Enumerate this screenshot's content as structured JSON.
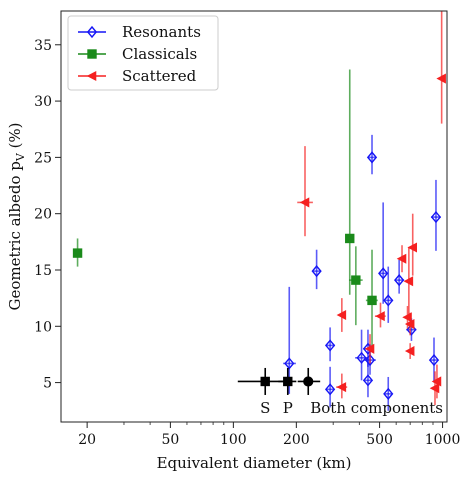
{
  "chart_data": {
    "type": "scatter",
    "xlabel": "Equivalent diameter (km)",
    "ylabel": "Geometric albedo p",
    "ylabel_sub": "V",
    "ylabel_suffix": " (%)",
    "xscale": "log",
    "xlim": [
      15,
      1050
    ],
    "ylim": [
      1.5,
      38
    ],
    "xticks": [
      20,
      50,
      100,
      200,
      500,
      1000
    ],
    "xtick_labels": [
      "20",
      "50",
      "100",
      "200",
      "500",
      "1000"
    ],
    "yticks": [
      5,
      10,
      15,
      20,
      25,
      30,
      35
    ],
    "ytick_labels": [
      "5",
      "10",
      "15",
      "20",
      "25",
      "30",
      "35"
    ],
    "grid": false,
    "legend_position": "top-left",
    "series": [
      {
        "name": "Resonants",
        "color": "#1515f5",
        "marker": "diamond",
        "points": [
          {
            "x": 250,
            "y": 14.9,
            "xerr": [
              10,
              10
            ],
            "yerr": [
              1.6,
              1.9
            ]
          },
          {
            "x": 185,
            "y": 6.7,
            "xerr": [
              12,
              14
            ],
            "yerr": [
              2.7,
              6.8
            ]
          },
          {
            "x": 290,
            "y": 8.3,
            "xerr": [
              14,
              16
            ],
            "yerr": [
              1.4,
              1.6
            ]
          },
          {
            "x": 290,
            "y": 4.4,
            "xerr": [
              14,
              14
            ],
            "yerr": [
              1.6,
              2.0
            ]
          },
          {
            "x": 410,
            "y": 7.2,
            "xerr": [
              28,
              30
            ],
            "yerr": [
              2.0,
              2.5
            ]
          },
          {
            "x": 440,
            "y": 8.0,
            "xerr": [
              22,
              22
            ],
            "yerr": [
              1.6,
              1.7
            ]
          },
          {
            "x": 450,
            "y": 7.0,
            "xerr": [
              30,
              30
            ],
            "yerr": [
              1.3,
              1.4
            ]
          },
          {
            "x": 440,
            "y": 5.2,
            "xerr": [
              20,
              20
            ],
            "yerr": [
              1.5,
              2.0
            ]
          },
          {
            "x": 460,
            "y": 25.0,
            "xerr": [
              20,
              22
            ],
            "yerr": [
              1.5,
              2.0
            ]
          },
          {
            "x": 520,
            "y": 14.7,
            "xerr": [
              20,
              22
            ],
            "yerr": [
              2.7,
              6.3
            ]
          },
          {
            "x": 550,
            "y": 12.3,
            "xerr": [
              30,
              30
            ],
            "yerr": [
              2.0,
              3.0
            ]
          },
          {
            "x": 550,
            "y": 4.0,
            "xerr": [
              20,
              20
            ],
            "yerr": [
              1.5,
              1.5
            ]
          },
          {
            "x": 620,
            "y": 14.1,
            "xerr": [
              30,
              35
            ],
            "yerr": [
              1.2,
              1.8
            ]
          },
          {
            "x": 710,
            "y": 9.7,
            "xerr": [
              40,
              40
            ],
            "yerr": [
              1.0,
              1.0
            ]
          },
          {
            "x": 930,
            "y": 19.7,
            "xerr": [
              50,
              50
            ],
            "yerr": [
              3.0,
              3.3
            ]
          },
          {
            "x": 910,
            "y": 7.0,
            "xerr": [
              40,
              40
            ],
            "yerr": [
              2.0,
              2.0
            ]
          }
        ]
      },
      {
        "name": "Classicals",
        "color": "#1a8a1a",
        "marker": "square",
        "points": [
          {
            "x": 18,
            "y": 16.5,
            "xerr": [
              0.8,
              0.8
            ],
            "yerr": [
              1.2,
              1.3
            ]
          },
          {
            "x": 360,
            "y": 17.8,
            "xerr": [
              12,
              12
            ],
            "yerr": [
              5.0,
              15.0
            ]
          },
          {
            "x": 385,
            "y": 14.1,
            "xerr": [
              28,
              30
            ],
            "yerr": [
              4.0,
              3.0
            ]
          },
          {
            "x": 460,
            "y": 12.3,
            "xerr": [
              30,
              30
            ],
            "yerr": [
              4.0,
              4.5
            ]
          }
        ]
      },
      {
        "name": "Scattered",
        "color": "#f52020",
        "marker": "triangle-left",
        "points": [
          {
            "x": 220,
            "y": 21.0,
            "xerr": [
              18,
              20
            ],
            "yerr": [
              3.0,
              5.0
            ]
          },
          {
            "x": 330,
            "y": 11.0,
            "xerr": [
              12,
              14
            ],
            "yerr": [
              1.5,
              1.5
            ]
          },
          {
            "x": 330,
            "y": 4.6,
            "xerr": [
              20,
              20
            ],
            "yerr": [
              1.0,
              1.2
            ]
          },
          {
            "x": 450,
            "y": 8.0,
            "xerr": [
              20,
              20
            ],
            "yerr": [
              1.3,
              1.3
            ]
          },
          {
            "x": 505,
            "y": 10.9,
            "xerr": [
              30,
              30
            ],
            "yerr": [
              1.0,
              1.2
            ]
          },
          {
            "x": 640,
            "y": 16.0,
            "xerr": [
              25,
              25
            ],
            "yerr": [
              1.2,
              1.2
            ]
          },
          {
            "x": 690,
            "y": 14.0,
            "xerr": [
              30,
              30
            ],
            "yerr": [
              3.0,
              3.0
            ]
          },
          {
            "x": 720,
            "y": 17.0,
            "xerr": [
              30,
              30
            ],
            "yerr": [
              2.5,
              3.0
            ]
          },
          {
            "x": 680,
            "y": 10.8,
            "xerr": [
              30,
              30
            ],
            "yerr": [
              1.0,
              1.0
            ]
          },
          {
            "x": 700,
            "y": 10.2,
            "xerr": [
              30,
              30
            ],
            "yerr": [
              1.0,
              1.0
            ]
          },
          {
            "x": 700,
            "y": 7.8,
            "xerr": [
              25,
              25
            ],
            "yerr": [
              0.7,
              0.7
            ]
          },
          {
            "x": 920,
            "y": 4.5,
            "xerr": [
              30,
              30
            ],
            "yerr": [
              1.5,
              1.5
            ]
          },
          {
            "x": 940,
            "y": 5.1,
            "xerr": [
              30,
              30
            ],
            "yerr": [
              1.5,
              1.5
            ]
          },
          {
            "x": 990,
            "y": 32.0,
            "xerr": [
              40,
              40
            ],
            "yerr": [
              4.0,
              6.0
            ]
          }
        ]
      },
      {
        "name": "",
        "color": "#000000",
        "marker": "square",
        "points": [
          {
            "x": 142,
            "y": 5.1,
            "xerr": [
              37,
              40
            ],
            "yerr": [
              1.2,
              1.2
            ],
            "label": "S"
          },
          {
            "x": 182,
            "y": 5.1,
            "xerr": [
              18,
              18
            ],
            "yerr": [
              1.2,
              1.2
            ],
            "label": "P"
          },
          {
            "x": 228,
            "y": 5.1,
            "xerr": [
              25,
              32
            ],
            "yerr": [
              1.2,
              1.2
            ],
            "label": "Both components",
            "marker": "circle"
          }
        ]
      }
    ]
  }
}
